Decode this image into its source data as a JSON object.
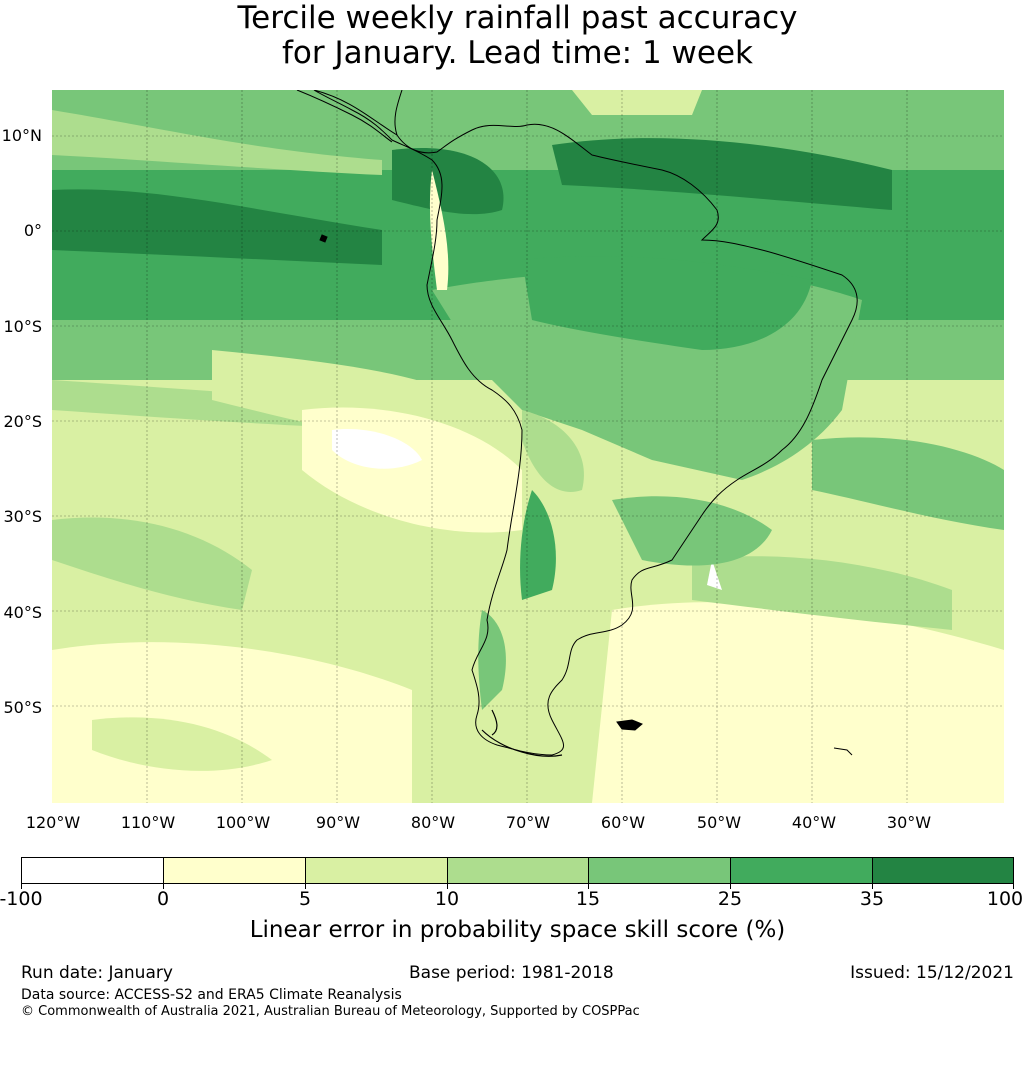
{
  "title": {
    "line1": "Tercile weekly rainfall past accuracy",
    "line2": "for January. Lead time: 1 week"
  },
  "map": {
    "region": "South America",
    "lat_labels": [
      "10°N",
      "0°",
      "10°S",
      "20°S",
      "30°S",
      "40°S",
      "50°S"
    ],
    "lon_labels": [
      "120°W",
      "110°W",
      "100°W",
      "90°W",
      "80°W",
      "70°W",
      "60°W",
      "50°W",
      "40°W",
      "30°W"
    ],
    "colors": {
      "white": "#ffffff",
      "pale_yellow": "#ffffcc",
      "light_green": "#d9f0a3",
      "green": "#addd8e",
      "mid_green": "#78c679",
      "strong_green": "#41ab5d",
      "dark_green": "#238443",
      "coast": "#000000"
    }
  },
  "legend": {
    "ticks": [
      "-100",
      "0",
      "5",
      "10",
      "15",
      "25",
      "35",
      "100"
    ],
    "colors": [
      "#ffffff",
      "#ffffcc",
      "#d9f0a3",
      "#addd8e",
      "#78c679",
      "#41ab5d",
      "#238443"
    ],
    "title": "Linear error in probability space skill score (%)"
  },
  "footer": {
    "run_date": "Run date: January",
    "base_period": "Base period: 1981-2018",
    "issued": "Issued: 15/12/2021",
    "data_source": "Data source: ACCESS-S2 and ERA5 Climate Reanalysis",
    "copyright": "© Commonwealth of Australia 2021, Australian Bureau of Meteorology, Supported by COSPPac"
  }
}
